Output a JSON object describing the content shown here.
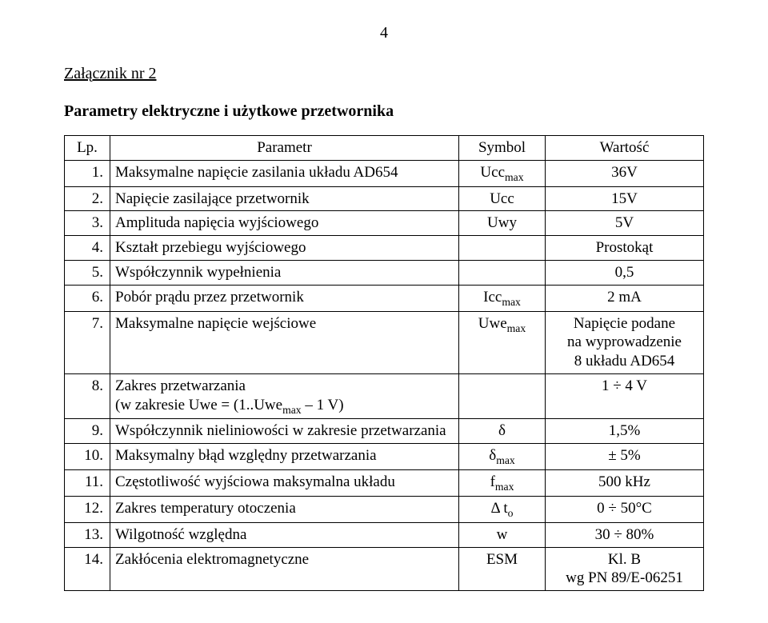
{
  "page_number": "4",
  "attachment_label": "Załącznik nr 2",
  "title": "Parametry elektryczne i użytkowe przetwornika",
  "header": {
    "lp": "Lp.",
    "param": "Parametr",
    "symbol": "Symbol",
    "value": "Wartość"
  },
  "rows": [
    {
      "n": "1.",
      "p_html": "Maksymalne napięcie zasilania układu AD654",
      "s_html": "Ucc<sub>max</sub>",
      "v_html": "36V"
    },
    {
      "n": "2.",
      "p_html": "Napięcie zasilające przetwornik",
      "s_html": "Ucc",
      "v_html": "15V"
    },
    {
      "n": "3.",
      "p_html": "Amplituda napięcia wyjściowego",
      "s_html": "Uwy",
      "v_html": "5V"
    },
    {
      "n": "4.",
      "p_html": "Kształt przebiegu wyjściowego",
      "s_html": "",
      "v_html": "Prostokąt"
    },
    {
      "n": "5.",
      "p_html": "Współczynnik wypełnienia",
      "s_html": "",
      "v_html": "0,5"
    },
    {
      "n": "6.",
      "p_html": "Pobór prądu przez przetwornik",
      "s_html": "Icc<sub>max</sub>",
      "v_html": "2 mA"
    },
    {
      "n": "7.",
      "p_html": "Maksymalne napięcie wejściowe",
      "s_html": "Uwe<sub>max</sub>",
      "v_html": "Napięcie podane<br>na wyprowadzenie<br>8 układu AD654"
    },
    {
      "n": "8.",
      "p_html": "Zakres przetwarzania<br>(w zakresie Uwe = (1..Uwe<sub>max</sub> – 1 V)",
      "s_html": "",
      "v_html": "1 ÷ 4 V"
    },
    {
      "n": "9.",
      "p_html": "Współczynnik nieliniowości w zakresie przetwarzania",
      "s_html": "δ",
      "v_html": "1,5%"
    },
    {
      "n": "10.",
      "p_html": "Maksymalny błąd względny przetwarzania",
      "s_html": "δ<sub>max</sub>",
      "v_html": "± 5%"
    },
    {
      "n": "11.",
      "p_html": "Częstotliwość wyjściowa maksymalna układu",
      "s_html": "f<sub>max</sub>",
      "v_html": "500 kHz"
    },
    {
      "n": "12.",
      "p_html": "Zakres temperatury otoczenia",
      "s_html": "Δ t<sub>o</sub>",
      "v_html": "0 ÷ 50°C"
    },
    {
      "n": "13.",
      "p_html": "Wilgotność względna",
      "s_html": "w",
      "v_html": "30 ÷ 80%"
    },
    {
      "n": "14.",
      "p_html": "Zakłócenia elektromagnetyczne",
      "s_html": "ESM",
      "v_html": "Kl. B<br>wg PN 89/E-06251"
    }
  ]
}
